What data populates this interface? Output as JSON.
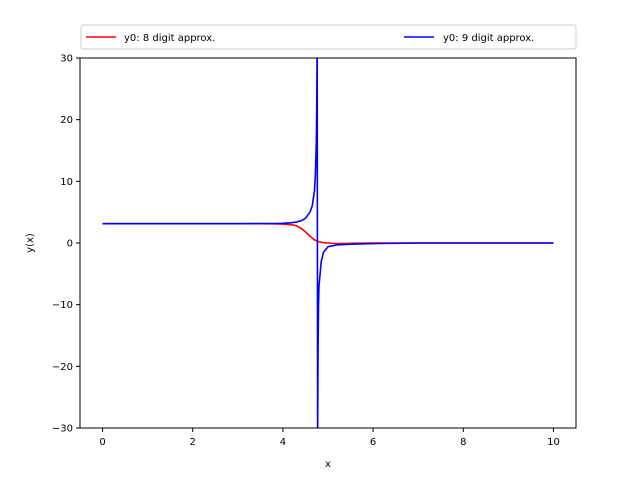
{
  "chart_data": {
    "type": "line",
    "xlabel": "x",
    "ylabel": "y(x)",
    "xlim": [
      -0.5,
      10.5
    ],
    "ylim": [
      -30,
      30
    ],
    "x_ticks": [
      0,
      2,
      4,
      6,
      8,
      10
    ],
    "y_ticks": [
      -30,
      -20,
      -10,
      0,
      10,
      20,
      30
    ],
    "x_tick_labels": [
      "0",
      "2",
      "4",
      "6",
      "8",
      "10"
    ],
    "y_tick_labels": [
      "−30",
      "−20",
      "−10",
      "0",
      "10",
      "20",
      "30"
    ],
    "grid": false,
    "legend_placement": "top (above plot, two columns)",
    "series": [
      {
        "name": "y0: 8 digit approx.",
        "color": "#ff0000",
        "x": [
          0,
          1,
          2,
          3,
          3.5,
          3.8,
          4.0,
          4.2,
          4.3,
          4.4,
          4.5,
          4.6,
          4.7,
          4.8,
          4.9,
          5.0,
          5.2,
          5.5,
          6,
          7,
          8,
          9,
          10
        ],
        "y": [
          3.14,
          3.14,
          3.14,
          3.14,
          3.13,
          3.11,
          3.07,
          2.95,
          2.8,
          2.4,
          1.8,
          1.1,
          0.5,
          0.2,
          0.05,
          0.0,
          -0.1,
          -0.05,
          0.0,
          0.0,
          0.0,
          0.0,
          0.0
        ]
      },
      {
        "name": "y0: 9 digit approx.",
        "color": "#0000ff",
        "x": [
          0,
          1,
          2,
          3,
          3.5,
          3.8,
          4.0,
          4.2,
          4.3,
          4.4,
          4.5,
          4.6,
          4.65,
          4.7,
          4.72,
          4.74,
          4.75,
          4.76,
          4.77,
          4.775,
          4.78,
          4.79,
          4.8,
          4.85,
          4.9,
          5.0,
          5.2,
          5.5,
          6,
          7,
          8,
          9,
          10
        ],
        "y": [
          3.14,
          3.14,
          3.14,
          3.14,
          3.15,
          3.16,
          3.2,
          3.3,
          3.4,
          3.6,
          4.0,
          5.0,
          6.0,
          8.5,
          11.0,
          16.0,
          22.0,
          32.0,
          -32.0,
          -24.0,
          -17.0,
          -10.0,
          -7.0,
          -3.0,
          -1.5,
          -0.6,
          -0.3,
          -0.2,
          -0.1,
          0.0,
          0.0,
          0.0,
          0.0
        ]
      }
    ]
  }
}
